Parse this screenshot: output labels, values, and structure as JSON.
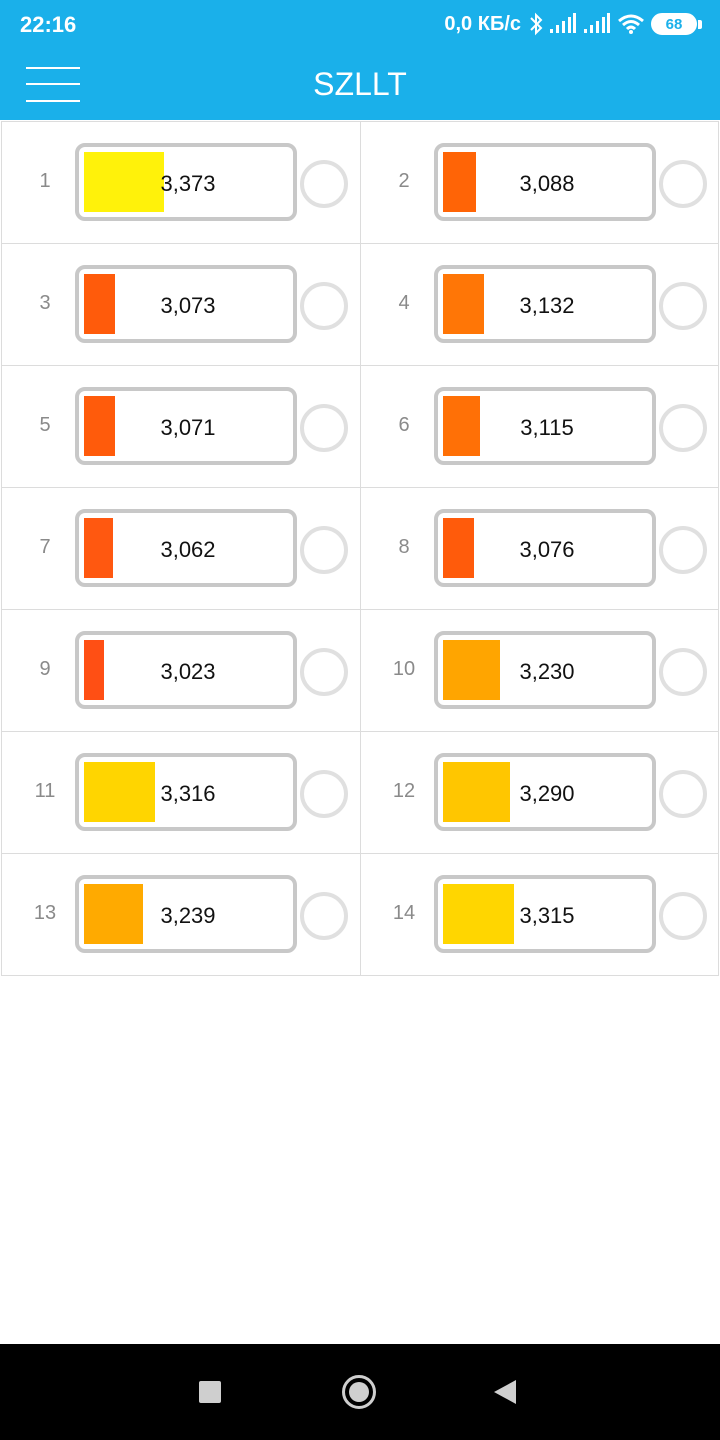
{
  "status_bar": {
    "time": "22:16",
    "net_speed": "0,0 КБ/с",
    "battery_level": "68",
    "icons": [
      "bluetooth-icon",
      "signal-icon",
      "signal-icon",
      "wifi-icon",
      "battery-icon"
    ]
  },
  "toolbar": {
    "title": "SZLLT",
    "menu_icon": "hamburger-menu-icon"
  },
  "cells": [
    {
      "index": "1",
      "voltage": "3,373",
      "fill_fraction": 0.39,
      "color": "#fff20a"
    },
    {
      "index": "2",
      "voltage": "3,088",
      "fill_fraction": 0.16,
      "color": "#ff6406"
    },
    {
      "index": "3",
      "voltage": "3,073",
      "fill_fraction": 0.15,
      "color": "#ff5b0b"
    },
    {
      "index": "4",
      "voltage": "3,132",
      "fill_fraction": 0.2,
      "color": "#ff7606"
    },
    {
      "index": "5",
      "voltage": "3,071",
      "fill_fraction": 0.15,
      "color": "#ff5b0b"
    },
    {
      "index": "6",
      "voltage": "3,115",
      "fill_fraction": 0.18,
      "color": "#ff7006"
    },
    {
      "index": "7",
      "voltage": "3,062",
      "fill_fraction": 0.14,
      "color": "#ff5810"
    },
    {
      "index": "8",
      "voltage": "3,076",
      "fill_fraction": 0.15,
      "color": "#ff5b0b"
    },
    {
      "index": "9",
      "voltage": "3,023",
      "fill_fraction": 0.1,
      "color": "#ff4f14"
    },
    {
      "index": "10",
      "voltage": "3,230",
      "fill_fraction": 0.28,
      "color": "#ffa500"
    },
    {
      "index": "11",
      "voltage": "3,316",
      "fill_fraction": 0.35,
      "color": "#ffd500"
    },
    {
      "index": "12",
      "voltage": "3,290",
      "fill_fraction": 0.33,
      "color": "#ffc600"
    },
    {
      "index": "13",
      "voltage": "3,239",
      "fill_fraction": 0.29,
      "color": "#ffaa00"
    },
    {
      "index": "14",
      "voltage": "3,315",
      "fill_fraction": 0.35,
      "color": "#ffd600"
    }
  ],
  "nav_bar": {
    "buttons": [
      "recent-apps-icon",
      "home-icon",
      "back-icon"
    ]
  }
}
